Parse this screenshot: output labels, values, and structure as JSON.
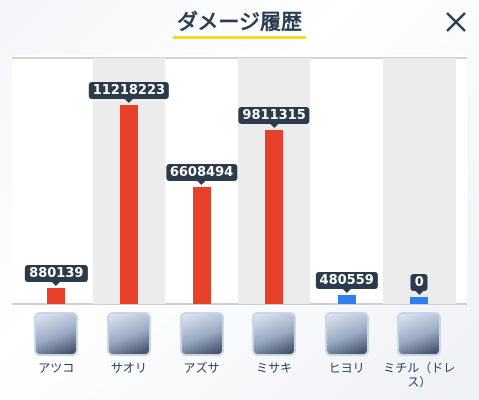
{
  "chart_data": {
    "type": "bar",
    "title": "ダメージ履歴",
    "categories": [
      "アツコ",
      "サオリ",
      "アズサ",
      "ミサキ",
      "ヒヨリ",
      "ミチル（ドレス）"
    ],
    "values": [
      880139,
      11218223,
      6608494,
      9811315,
      480559,
      0
    ],
    "colors": [
      "#e8412a",
      "#e8412a",
      "#e8412a",
      "#e8412a",
      "#2f80ec",
      "#2f80ec"
    ]
  }
}
